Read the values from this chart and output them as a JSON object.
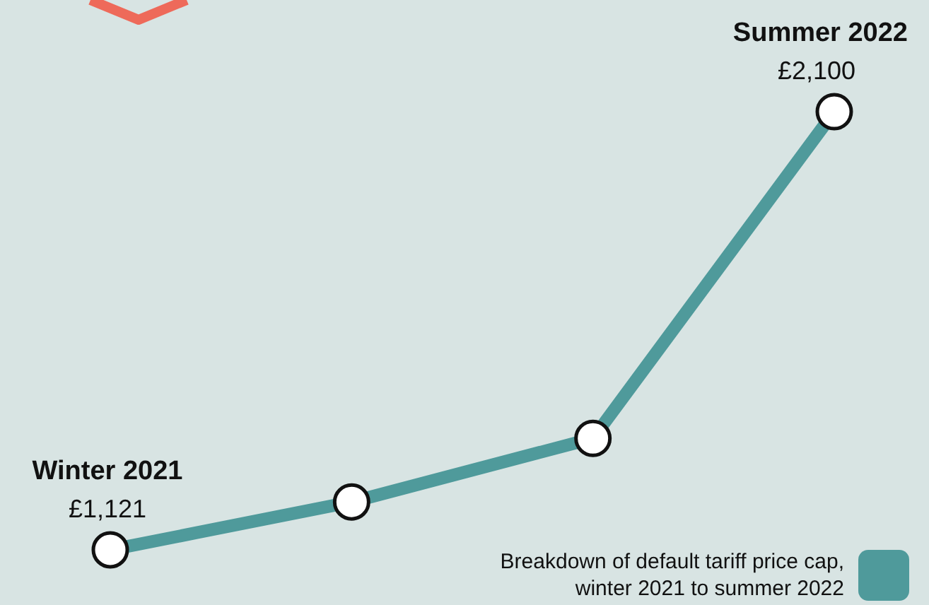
{
  "chart_data": {
    "type": "line",
    "categories": [
      "Winter 2021",
      null,
      null,
      "Summer 2022"
    ],
    "series": [
      {
        "name": "Breakdown of default tariff price cap, winter 2021 to summer 2022",
        "color": "#4f9a9b",
        "values": [
          1121,
          1228,
          1370,
          2100
        ],
        "value_labels": [
          "£1,121",
          null,
          null,
          "£2,100"
        ]
      }
    ],
    "legend": "bottom right",
    "marker": "circle",
    "line_style": "solid",
    "grid": false
  }
}
